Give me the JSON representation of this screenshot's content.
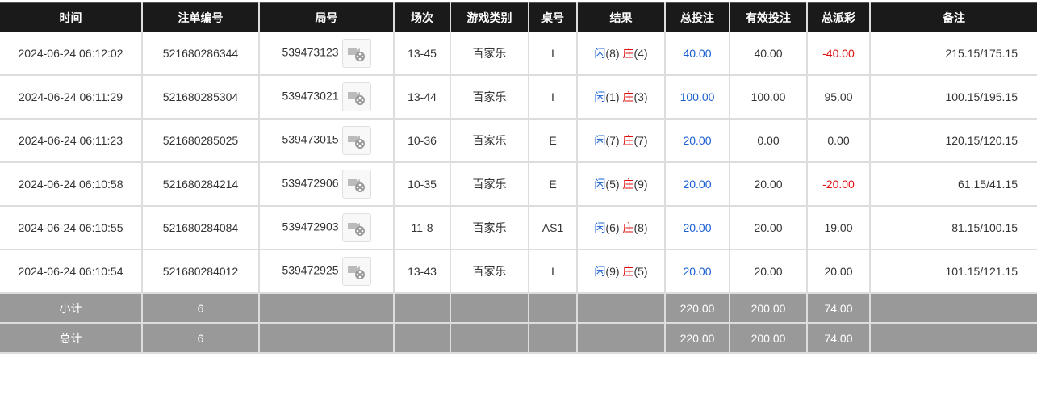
{
  "headers": [
    "时间",
    "注单编号",
    "局号",
    "场次",
    "游戏类别",
    "桌号",
    "结果",
    "总投注",
    "有效投注",
    "总派彩",
    "备注"
  ],
  "rows": [
    {
      "time": "2024-06-24 06:12:02",
      "order": "521680286344",
      "round": "539473123",
      "session": "13-45",
      "game": "百家乐",
      "table": "I",
      "player_label": "闲",
      "player": "(8)",
      "banker_label": "庄",
      "banker": "(4)",
      "total": "40.00",
      "valid": "40.00",
      "payout": "-40.00",
      "remark": "215.15/175.15"
    },
    {
      "time": "2024-06-24 06:11:29",
      "order": "521680285304",
      "round": "539473021",
      "session": "13-44",
      "game": "百家乐",
      "table": "I",
      "player_label": "闲",
      "player": "(1)",
      "banker_label": "庄",
      "banker": "(3)",
      "total": "100.00",
      "valid": "100.00",
      "payout": "95.00",
      "remark": "100.15/195.15"
    },
    {
      "time": "2024-06-24 06:11:23",
      "order": "521680285025",
      "round": "539473015",
      "session": "10-36",
      "game": "百家乐",
      "table": "E",
      "player_label": "闲",
      "player": "(7)",
      "banker_label": "庄",
      "banker": "(7)",
      "total": "20.00",
      "valid": "0.00",
      "payout": "0.00",
      "remark": "120.15/120.15"
    },
    {
      "time": "2024-06-24 06:10:58",
      "order": "521680284214",
      "round": "539472906",
      "session": "10-35",
      "game": "百家乐",
      "table": "E",
      "player_label": "闲",
      "player": "(5)",
      "banker_label": "庄",
      "banker": "(9)",
      "total": "20.00",
      "valid": "20.00",
      "payout": "-20.00",
      "remark": "61.15/41.15"
    },
    {
      "time": "2024-06-24 06:10:55",
      "order": "521680284084",
      "round": "539472903",
      "session": "11-8",
      "game": "百家乐",
      "table": "AS1",
      "player_label": "闲",
      "player": "(6)",
      "banker_label": "庄",
      "banker": "(8)",
      "total": "20.00",
      "valid": "20.00",
      "payout": "19.00",
      "remark": "81.15/100.15"
    },
    {
      "time": "2024-06-24 06:10:54",
      "order": "521680284012",
      "round": "539472925",
      "session": "13-43",
      "game": "百家乐",
      "table": "I",
      "player_label": "闲",
      "player": "(9)",
      "banker_label": "庄",
      "banker": "(5)",
      "total": "20.00",
      "valid": "20.00",
      "payout": "20.00",
      "remark": "101.15/121.15"
    }
  ],
  "summary": [
    {
      "label": "小计",
      "count": "6",
      "total": "220.00",
      "valid": "200.00",
      "payout": "74.00"
    },
    {
      "label": "总计",
      "count": "6",
      "total": "220.00",
      "valid": "200.00",
      "payout": "74.00"
    }
  ],
  "colors": {
    "header_bg": "#1a1a1a",
    "player": "#1a5fd1",
    "banker": "#e01010",
    "negative": "#e01010",
    "summary_bg": "#999999"
  }
}
